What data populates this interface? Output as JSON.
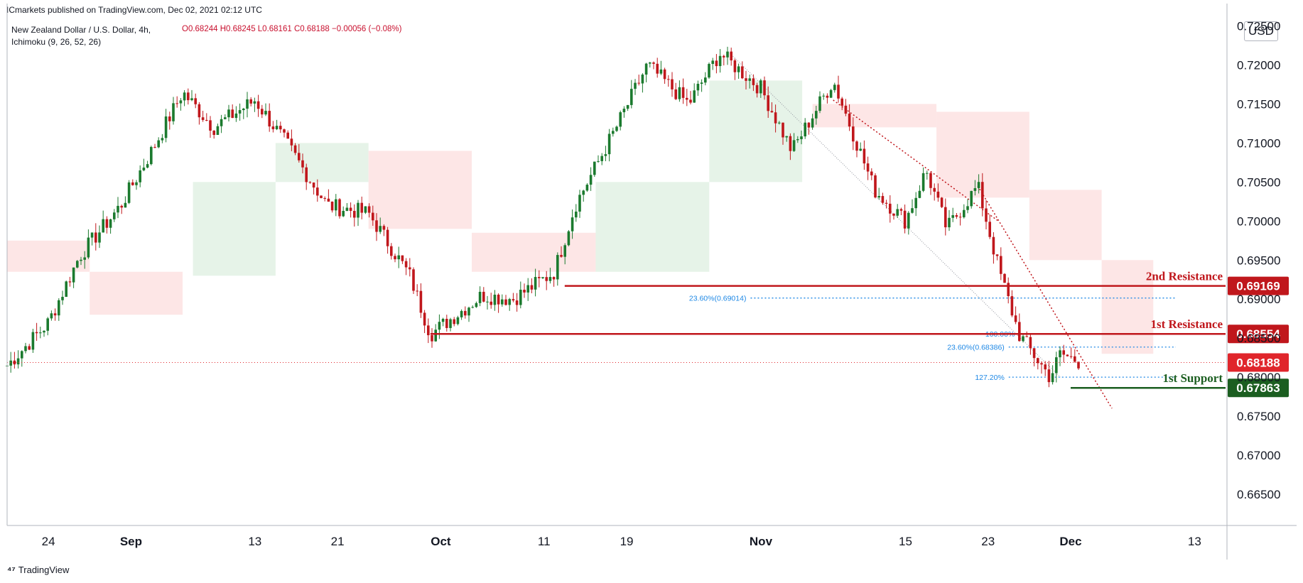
{
  "header": {
    "publisher": "ICmarkets published on TradingView.com, Dec 02, 2021 02:12 UTC",
    "symbol": "New Zealand Dollar / U.S. Dollar, 4h,",
    "ohlc": "O0.68244 H0.68245 L0.68161 C0.68188 −0.00056 (−0.08%)",
    "indicator": "Ichimoku (9, 26, 52, 26)",
    "currency": "USD"
  },
  "footer": {
    "brand": "TradingView"
  },
  "chart_data": {
    "type": "candlestick",
    "title": "New Zealand Dollar / U.S. Dollar, 4h",
    "ylim": [
      0.661,
      0.7265
    ],
    "y_ticks": [
      "0.72500",
      "0.72000",
      "0.71500",
      "0.71000",
      "0.70500",
      "0.70000",
      "0.69500",
      "0.69000",
      "0.68500",
      "0.68000",
      "0.67500",
      "0.67000",
      "0.66500"
    ],
    "x_ticks": [
      "24",
      "Sep",
      "13",
      "21",
      "Oct",
      "11",
      "19",
      "Nov",
      "15",
      "23",
      "Dec",
      "13"
    ],
    "price_path": [
      [
        "2021-08-20",
        0.6815
      ],
      [
        "2021-08-24",
        0.687
      ],
      [
        "2021-08-27",
        0.6955
      ],
      [
        "2021-08-31",
        0.702
      ],
      [
        "2021-09-03",
        0.709
      ],
      [
        "2021-09-06",
        0.7165
      ],
      [
        "2021-09-09",
        0.712
      ],
      [
        "2021-09-13",
        0.7155
      ],
      [
        "2021-09-16",
        0.71
      ],
      [
        "2021-09-20",
        0.702
      ],
      [
        "2021-09-24",
        0.701
      ],
      [
        "2021-09-28",
        0.693
      ],
      [
        "2021-09-30",
        0.6855
      ],
      [
        "2021-10-05",
        0.6905
      ],
      [
        "2021-10-08",
        0.69
      ],
      [
        "2021-10-12",
        0.6935
      ],
      [
        "2021-10-14",
        0.702
      ],
      [
        "2021-10-18",
        0.712
      ],
      [
        "2021-10-21",
        0.72
      ],
      [
        "2021-10-25",
        0.715
      ],
      [
        "2021-10-28",
        0.7215
      ],
      [
        "2021-11-01",
        0.717
      ],
      [
        "2021-11-04",
        0.709
      ],
      [
        "2021-11-08",
        0.718
      ],
      [
        "2021-11-10",
        0.711
      ],
      [
        "2021-11-12",
        0.704
      ],
      [
        "2021-11-15",
        0.7
      ],
      [
        "2021-11-17",
        0.7065
      ],
      [
        "2021-11-19",
        0.699
      ],
      [
        "2021-11-22",
        0.7045
      ],
      [
        "2021-11-24",
        0.694
      ],
      [
        "2021-11-26",
        0.6855
      ],
      [
        "2021-11-29",
        0.68
      ],
      [
        "2021-11-30",
        0.683
      ],
      [
        "2021-12-02",
        0.6819
      ]
    ],
    "levels": [
      {
        "label": "2nd Resistance",
        "value": 0.69169,
        "tag": "0.69169",
        "color": "#c0171c"
      },
      {
        "label": "1st Resistance",
        "value": 0.68554,
        "tag": "0.68554",
        "color": "#c0171c"
      },
      {
        "label": "1st Support",
        "value": 0.67863,
        "tag": "0.67863",
        "color": "#1b5e20"
      }
    ],
    "current_price": {
      "value": 0.68188,
      "tag": "0.68188",
      "color": "#e0252b"
    },
    "fib_lines": [
      {
        "label": "23.60%(0.69014)",
        "value": 0.69014
      },
      {
        "label": "100.00%",
        "value": 0.68554
      },
      {
        "label": "23.60%(0.68386)",
        "value": 0.68386
      },
      {
        "label": "127.20%",
        "value": 0.68
      }
    ],
    "colors": {
      "up": "#1b7a2e",
      "down": "#c0171c",
      "cloud_bull": "#e3f2e5",
      "cloud_bear": "#fde3e3",
      "fib": "#1e88e5"
    }
  }
}
